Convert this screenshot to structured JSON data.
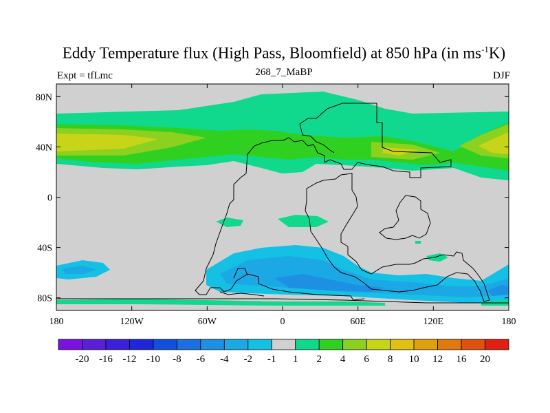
{
  "title": {
    "main": "Eddy Temperature flux (High Pass, Bloomfield) at 850 hPa (in ms",
    "sup": "-1",
    "end": "K)"
  },
  "subtitle_left": "Expt = tfLmc",
  "subtitle_center": "268_7_MaBP",
  "subtitle_right": "DJF",
  "colors": {
    "background_field": "#d0d0d0",
    "coastline": "#000000"
  },
  "chart_data": {
    "type": "heatmap",
    "title": "Eddy Temperature flux (High Pass, Bloomfield) at 850 hPa (in ms-1K)",
    "projection": "cylindrical equidistant",
    "xlim": [
      -180,
      180
    ],
    "ylim": [
      -90,
      90
    ],
    "x_ticks": [
      {
        "value": -180,
        "label": "180"
      },
      {
        "value": -120,
        "label": "120W"
      },
      {
        "value": -60,
        "label": "60W"
      },
      {
        "value": 0,
        "label": "0"
      },
      {
        "value": 60,
        "label": "60E"
      },
      {
        "value": 120,
        "label": "120E"
      },
      {
        "value": 180,
        "label": "180"
      }
    ],
    "y_ticks": [
      {
        "value": 80,
        "label": "80N"
      },
      {
        "value": 40,
        "label": "40N"
      },
      {
        "value": 0,
        "label": "0"
      },
      {
        "value": -40,
        "label": "40S"
      },
      {
        "value": -80,
        "label": "80S"
      }
    ],
    "colorbar": {
      "labels": [
        "-20",
        "-16",
        "-12",
        "-10",
        "-8",
        "-6",
        "-4",
        "-2",
        "-1",
        "1",
        "2",
        "4",
        "6",
        "8",
        "10",
        "12",
        "16",
        "20"
      ],
      "colors": [
        "#7a12e0",
        "#5a1ed6",
        "#3a20d8",
        "#1c28d8",
        "#1050dc",
        "#1a70e0",
        "#1e90e4",
        "#1ca8e4",
        "#14c0e4",
        "#d0d0d0",
        "#10d88c",
        "#30d020",
        "#8cd020",
        "#c8d418",
        "#e0c010",
        "#e0a010",
        "#e07810",
        "#e05010",
        "#e02010"
      ]
    },
    "regions": [
      {
        "name": "north-pacific-band",
        "level": "6",
        "lon": [
          -180,
          -95
        ],
        "lat": [
          32,
          48
        ]
      },
      {
        "name": "north-atlantic-band",
        "level": "2",
        "lon": [
          -70,
          30
        ],
        "lat": [
          28,
          72
        ]
      },
      {
        "name": "asia-band",
        "level": "6",
        "lon": [
          80,
          120
        ],
        "lat": [
          32,
          44
        ]
      },
      {
        "name": "east-pacific-band",
        "level": "6",
        "lon": [
          140,
          180
        ],
        "lat": [
          32,
          48
        ]
      },
      {
        "name": "southern-ocean-band",
        "level": "-4",
        "lon": [
          -50,
          150
        ],
        "lat": [
          -75,
          -50
        ]
      },
      {
        "name": "south-pacific-patch",
        "level": "-2",
        "lon": [
          -180,
          -140
        ],
        "lat": [
          -68,
          -52
        ]
      },
      {
        "name": "equatorial-patches",
        "level": "2",
        "lon": [
          -50,
          40
        ],
        "lat": [
          -25,
          -15
        ]
      }
    ]
  },
  "icons": {
    "map": "coastline-map",
    "legend": "colorbar-legend"
  }
}
